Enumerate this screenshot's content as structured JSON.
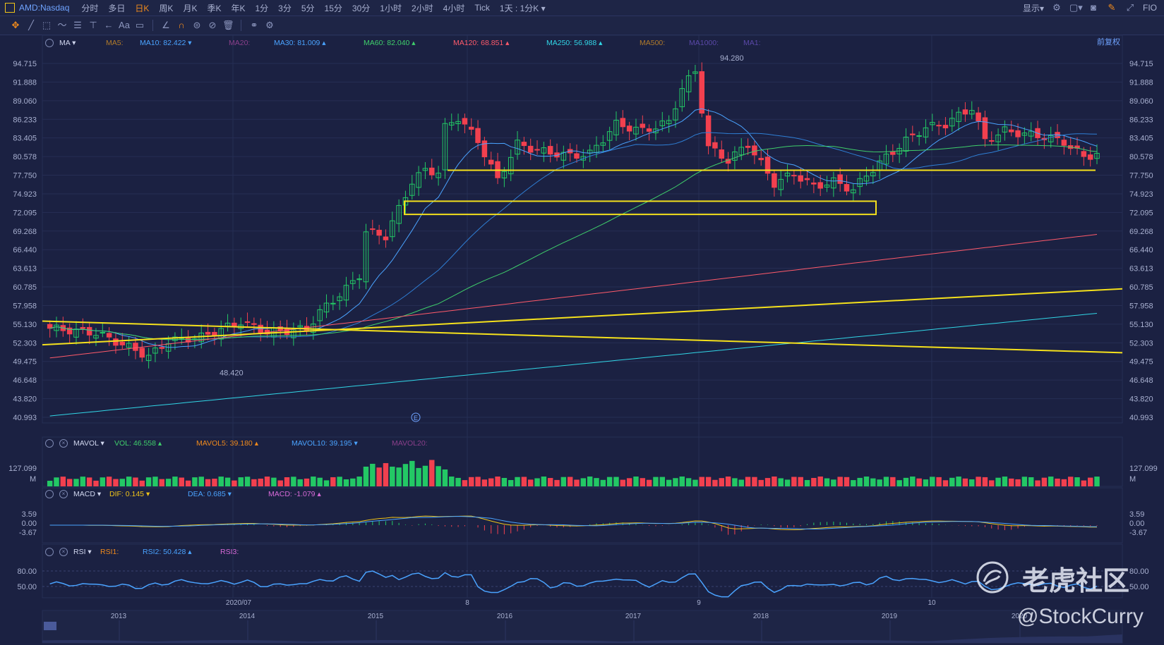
{
  "topbar": {
    "symbol": "AMD:Nasdaq",
    "periods": [
      "分时",
      "多日",
      "日K",
      "周K",
      "月K",
      "季K",
      "年K",
      "1分",
      "3分",
      "5分",
      "15分",
      "30分",
      "1小时",
      "2小时",
      "4小时",
      "Tick"
    ],
    "active_period": "日K",
    "interval_select": "1天 : 1分K",
    "display_menu": "显示",
    "fio": "FIO"
  },
  "indicators": {
    "ma_name": "MA",
    "ma_items": [
      {
        "label": "MA5:",
        "color": "#b07a2a"
      },
      {
        "label": "MA10: 82.422",
        "color": "#4aa3ff",
        "trend": "down"
      },
      {
        "label": "MA20:",
        "color": "#8a3f8a"
      },
      {
        "label": "MA30: 81.009",
        "color": "#4aa3ff",
        "trend": "up"
      },
      {
        "label": "MA60: 82.040",
        "color": "#3fcf6b",
        "trend": "up"
      },
      {
        "label": "MA120: 68.851",
        "color": "#ff5a6a",
        "trend": "up"
      },
      {
        "label": "MA250: 56.988",
        "color": "#31d6e6",
        "trend": "up"
      },
      {
        "label": "MA500:",
        "color": "#b07a2a"
      },
      {
        "label": "MA1000:",
        "color": "#5a48a8"
      },
      {
        "label": "MA1:",
        "color": "#5a48a8"
      }
    ],
    "fuquan": "前复权",
    "vol_name": "MAVOL",
    "vol_items": [
      {
        "label": "VOL: 46.558",
        "color": "#3fcf6b",
        "trend": "up"
      },
      {
        "label": "MAVOL5: 39.180",
        "color": "#f08a1c",
        "trend": "up"
      },
      {
        "label": "MAVOL10: 39.195",
        "color": "#4aa3ff",
        "trend": "down"
      },
      {
        "label": "MAVOL20:",
        "color": "#8a3f8a"
      }
    ],
    "macd_name": "MACD",
    "macd_items": [
      {
        "label": "DIF: 0.145",
        "color": "#f0c419",
        "trend": "down"
      },
      {
        "label": "DEA: 0.685",
        "color": "#4aa3ff",
        "trend": "down"
      },
      {
        "label": "MACD: -1.079",
        "color": "#d86ad8",
        "trend": "up"
      }
    ],
    "rsi_name": "RSI",
    "rsi_items": [
      {
        "label": "RSI1:",
        "color": "#f08a1c"
      },
      {
        "label": "RSI2: 50.428",
        "color": "#4aa3ff",
        "trend": "up"
      },
      {
        "label": "RSI3:",
        "color": "#d86ad8"
      }
    ]
  },
  "price_axis": [
    "94.715",
    "91.888",
    "89.060",
    "86.233",
    "83.405",
    "80.578",
    "77.750",
    "74.923",
    "72.095",
    "69.268",
    "66.440",
    "63.613",
    "60.785",
    "57.958",
    "55.130",
    "52.303",
    "49.475",
    "46.648",
    "43.820",
    "40.993"
  ],
  "high_label": "94.280",
  "low_label": "48.420",
  "volume_axis": {
    "value": "127.099",
    "unit": "M"
  },
  "macd_axis": [
    "3.59",
    "0.00",
    "-3.67"
  ],
  "rsi_axis": [
    "80.00",
    "50.00"
  ],
  "time_labels": [
    "2020/07",
    "8",
    "9",
    "10"
  ],
  "year_labels": [
    "2013",
    "2014",
    "2015",
    "2016",
    "2017",
    "2018",
    "2019",
    "2020"
  ],
  "earnings_marker": "E",
  "watermark": {
    "brand": "老虎社区",
    "handle": "@StockCurry"
  },
  "colors": {
    "up": "#23c865",
    "down": "#f2404f",
    "bg": "#1b2142",
    "grid": "#262e54",
    "highlight": "#f5e11c"
  }
}
